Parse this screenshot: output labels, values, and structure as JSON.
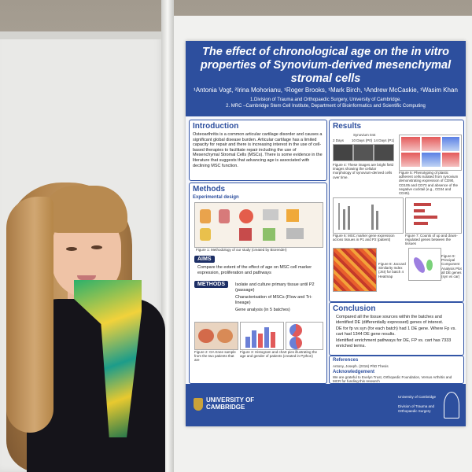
{
  "poster": {
    "title": "The effect of chronological age on the in vitro properties of Synovium-derived mesenchymal stromal cells",
    "authors": "¹Antonia Vogt, ²Irina Mohorianu, ¹Roger Brooks, ¹Mark Birch, ¹Andrew McCaskie, ¹Wasim Khan",
    "affiliation_1": "1.Division of Trauma and Orthopaedic Surgery, University of Cambridge.",
    "affiliation_2": "2. MRC –Cambridge Stem Cell Institute, Department of Bioinformatics and Scientific Computing",
    "intro": {
      "heading": "Introduction",
      "text": "Osteoarthritis is a common articular cartilage disorder and causes a significant global disease burden. Articular cartilage has a limited capacity for repair and there is increasing interest in the use of cell-based therapies to facilitate repair including the use of Mesenchymal Stromal Cells (MSCs). There is some evidence in the literature that suggests that advancing age is associated with declining MSC function."
    },
    "methods": {
      "heading": "Methods",
      "subheading": "Experimental design",
      "figure1_caption": "Figure 1: Methodology of our study (created by Biorender)",
      "aims_label": "AIMS",
      "aims_text": "Compare the extent of the effect of age on MSC cell marker expression, proliferation and pathways",
      "methods_label": "METHODS",
      "methods_items": [
        "Isolate and culture primary tissue until P2 (passage)",
        "Characterisation of MSCs (Flow and Tri-lineage)",
        "Gene analysis (in 5 batches)"
      ],
      "figure2_caption": "Figure 2: OA Knee sample from the two patients that are",
      "figure3_caption": "Figure 3: Histogram and chart pies illustrating the age and gender of patients (created in Python)"
    },
    "results": {
      "heading": "Results",
      "timeline_title": "Synovium 044",
      "timeline_labels": [
        "2 Days",
        "10 Days (P0)",
        "14 Days (P1)"
      ],
      "figure4_caption": "Figure 4: These images are bright field images showing the cellular morphology of synovium-derived cells over time.",
      "figure5_caption": "Figure 5: Phenotyping of plastic adherent cells isolated from synovium demonstrating expression of CD90, CD105 and CD73 and absence of the negative cocktail (e.g., CD34 and CD45).",
      "figure6_caption": "Figure 6: MSC marker gene expression across tissues in P1 and P2 (patient)",
      "figure7_caption": "Figure 7: Counts of up and down-regulated genes between the tissues",
      "figure8_caption": "Figure 8: Jaccard Similarity Index (JSI) for batch 4 Heatmap",
      "figure9_caption": "Figure 9: Principal Component Analysis Plot all DE genes (syn vs car)"
    },
    "conclusion": {
      "heading": "Conclusion",
      "items": [
        "Compared all the tissue sources within the batches and identified DE (differentially expressed) genes of interest.",
        "DE for fp vs syn (for each batch) had 1 DE gene. Where Fp vs. cart had 1344 DE gene results.",
        "Identified enrichment pathways for DE, FP vs. cart has 7333 enriched terms."
      ]
    },
    "references": {
      "heading": "References",
      "text": "Antony, Joseph. (2016) PhD Thesis",
      "ack_heading": "Acknowledgement",
      "ack_text": "We are grateful to Evelyn Trust, Orthopedic Foundation, Versus Arthritis and MCR for funding this research"
    },
    "footer": {
      "university": "UNIVERSITY OF CAMBRIDGE",
      "department_top": "University of Cambridge",
      "department_bottom": "Division of Trauma and Orthopaedic Surgery"
    }
  },
  "colors": {
    "poster_blue": "#2d4f9e",
    "scarf_green": "#2bb06b",
    "scarf_yellow": "#f2d23b"
  }
}
